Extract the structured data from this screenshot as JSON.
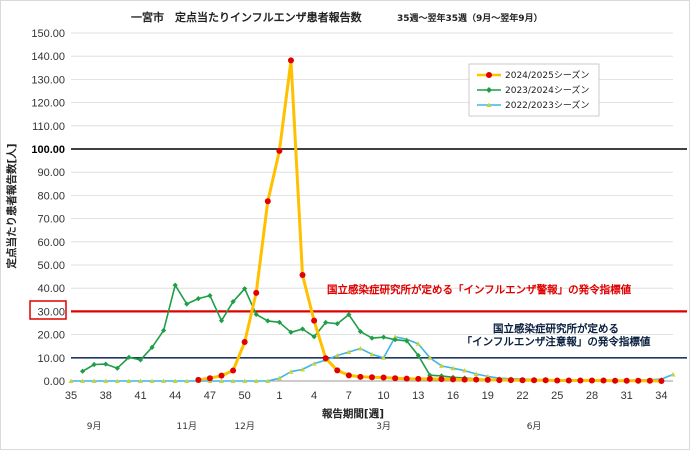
{
  "chart_data": {
    "type": "line",
    "title": "一宮市　定点当たりインフルエンザ患者報告数",
    "subtitle": "35週〜翌年35週（9月〜翌年9月）",
    "xlabel": "報告期間[週]",
    "ylabel": "定点当たり患者報告数[人]",
    "ylim": [
      0,
      150
    ],
    "y_ticks": [
      "0.00",
      "10.00",
      "20.00",
      "30.00",
      "40.00",
      "50.00",
      "60.00",
      "70.00",
      "80.00",
      "90.00",
      "100.00",
      "110.00",
      "120.00",
      "130.00",
      "140.00",
      "150.00"
    ],
    "categories": [
      "35",
      "36",
      "37",
      "38",
      "39",
      "40",
      "41",
      "42",
      "43",
      "44",
      "45",
      "46",
      "47",
      "48",
      "49",
      "50",
      "51",
      "52",
      "1",
      "2",
      "3",
      "4",
      "5",
      "6",
      "7",
      "8",
      "9",
      "10",
      "11",
      "12",
      "13",
      "14",
      "15",
      "16",
      "17",
      "18",
      "19",
      "20",
      "21",
      "22",
      "23",
      "24",
      "25",
      "26",
      "27",
      "28",
      "29",
      "30",
      "31",
      "32",
      "33",
      "34",
      "35"
    ],
    "x_tick_labels": [
      "35",
      "38",
      "41",
      "44",
      "47",
      "50",
      "1",
      "4",
      "7",
      "10",
      "13",
      "16",
      "19",
      "22",
      "25",
      "28",
      "31",
      "34"
    ],
    "months": [
      {
        "label": "9月",
        "week": "37"
      },
      {
        "label": "11月",
        "week": "45"
      },
      {
        "label": "12月",
        "week": "50"
      },
      {
        "label": "3月",
        "week": "10"
      },
      {
        "label": "6月",
        "week": "23"
      }
    ],
    "series": [
      {
        "name": "2024/2025シーズン",
        "color": "#ffc000",
        "marker_color": "#e00000",
        "values": [
          null,
          null,
          null,
          null,
          null,
          null,
          null,
          null,
          null,
          null,
          null,
          0.5,
          1.2,
          2.3,
          4.5,
          16.8,
          38.0,
          77.5,
          99.2,
          138.2,
          45.7,
          26.0,
          9.8,
          4.6,
          2.4,
          1.8,
          1.6,
          1.5,
          1.2,
          1.0,
          0.9,
          0.9,
          0.8,
          0.7,
          0.6,
          0.6,
          0.5,
          0.4,
          0.4,
          0.3,
          0.3,
          0.3,
          0.2,
          0.2,
          0.2,
          0.2,
          0.2,
          0.1,
          0.1,
          0.1,
          0.1,
          0.0,
          null
        ]
      },
      {
        "name": "2023/2024シーズン",
        "color": "#1e9e45",
        "marker_color": "#1e9e45",
        "values": [
          null,
          4.2,
          7.1,
          7.3,
          5.5,
          10.2,
          9.1,
          14.5,
          21.8,
          41.3,
          33.2,
          35.5,
          36.8,
          26.0,
          34.2,
          39.8,
          28.7,
          25.9,
          25.3,
          21.0,
          22.4,
          19.1,
          25.2,
          24.7,
          28.6,
          21.3,
          18.5,
          18.9,
          17.8,
          17.3,
          11.0,
          2.5,
          2.2,
          1.6,
          1.3,
          0.9,
          0.5,
          0.5,
          0.4,
          0.3,
          0.3,
          0.2,
          0.2,
          0.2,
          0.2,
          0.2,
          0.2,
          0.1,
          0.1,
          0.1,
          0.1,
          0.1,
          null
        ]
      },
      {
        "name": "2022/2023シーズン",
        "color": "#3fb6e8",
        "marker_color": "#c8d23a",
        "values": [
          0.0,
          0.0,
          0.0,
          0.0,
          0.0,
          0.0,
          0.0,
          0.0,
          0.0,
          0.0,
          0.0,
          0.0,
          0.0,
          0.0,
          0.0,
          0.0,
          0.0,
          0.0,
          1.2,
          4.0,
          5.0,
          7.5,
          9.0,
          11.0,
          12.5,
          14.0,
          11.5,
          10.0,
          19.0,
          18.0,
          16.0,
          10.0,
          6.5,
          5.5,
          4.5,
          3.0,
          2.0,
          1.2,
          1.0,
          0.8,
          0.6,
          0.5,
          0.4,
          0.3,
          0.3,
          0.2,
          0.2,
          0.2,
          0.3,
          0.4,
          0.5,
          0.8,
          2.8
        ]
      }
    ],
    "reference_lines": [
      {
        "value": 100,
        "color": "#000000"
      },
      {
        "value": 30,
        "color": "#e00000",
        "label": "国立感染症研究所が定める「インフルエンザ警報」の発令指標値"
      },
      {
        "value": 10,
        "color": "#1f3864",
        "label_line1": "国立感染症研究所が定める",
        "label_line2": "「インフルエンザ注意報」の発令指標値"
      }
    ],
    "legend_position": "top-right"
  }
}
